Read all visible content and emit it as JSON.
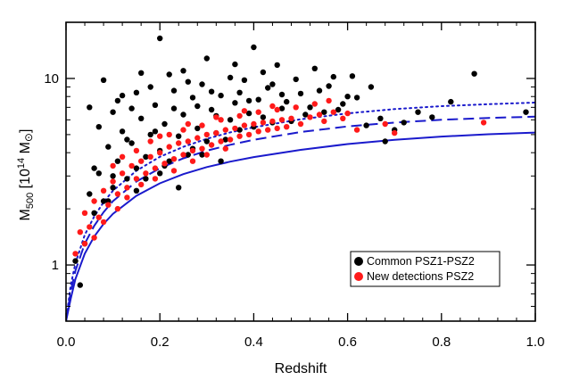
{
  "chart_data": {
    "type": "scatter",
    "title": "",
    "xlabel": "Redshift",
    "ylabel": "M500 [10^14 M⊙]",
    "ylabel_parts": {
      "main": "M",
      "sub": "500",
      "open": " [10",
      "sup": "14",
      "unit": " M",
      "unit_sub": "⊙",
      "close": "]"
    },
    "xlim": [
      0.0,
      1.0
    ],
    "ylim": [
      0.5,
      20
    ],
    "yscale": "log",
    "xticks": [
      0.0,
      0.2,
      0.4,
      0.6,
      0.8,
      1.0
    ],
    "xtick_labels": [
      "0.0",
      "0.2",
      "0.4",
      "0.6",
      "0.8",
      "1.0"
    ],
    "yticks": [
      1,
      10
    ],
    "ytick_labels": [
      "1",
      "10"
    ],
    "grid": false,
    "legend_position": "lower-right",
    "series": [
      {
        "name": "Common PSZ1-PSZ2",
        "color": "#000000",
        "marker": "circle",
        "points": [
          [
            0.03,
            0.78
          ],
          [
            0.04,
            1.3
          ],
          [
            0.05,
            2.4
          ],
          [
            0.06,
            1.9
          ],
          [
            0.07,
            3.1
          ],
          [
            0.08,
            2.2
          ],
          [
            0.09,
            4.3
          ],
          [
            0.1,
            2.6
          ],
          [
            0.11,
            3.6
          ],
          [
            0.12,
            5.2
          ],
          [
            0.13,
            2.9
          ],
          [
            0.14,
            4.5
          ],
          [
            0.15,
            3.3
          ],
          [
            0.16,
            6.1
          ],
          [
            0.17,
            3.8
          ],
          [
            0.18,
            5.0
          ],
          [
            0.19,
            7.2
          ],
          [
            0.2,
            4.1
          ],
          [
            0.21,
            5.7
          ],
          [
            0.22,
            3.6
          ],
          [
            0.23,
            8.6
          ],
          [
            0.24,
            4.9
          ],
          [
            0.25,
            6.4
          ],
          [
            0.26,
            3.9
          ],
          [
            0.27,
            7.9
          ],
          [
            0.28,
            5.4
          ],
          [
            0.29,
            9.3
          ],
          [
            0.3,
            4.6
          ],
          [
            0.31,
            6.8
          ],
          [
            0.32,
            5.1
          ],
          [
            0.33,
            8.1
          ],
          [
            0.34,
            4.7
          ],
          [
            0.35,
            6.0
          ],
          [
            0.36,
            7.4
          ],
          [
            0.37,
            5.3
          ],
          [
            0.38,
            9.8
          ],
          [
            0.39,
            6.5
          ],
          [
            0.4,
            5.5
          ],
          [
            0.41,
            7.7
          ],
          [
            0.42,
            6.2
          ],
          [
            0.43,
            8.9
          ],
          [
            0.44,
            5.8
          ],
          [
            0.45,
            11.8
          ],
          [
            0.46,
            6.9
          ],
          [
            0.47,
            7.5
          ],
          [
            0.48,
            5.9
          ],
          [
            0.5,
            8.3
          ],
          [
            0.52,
            7.0
          ],
          [
            0.54,
            8.6
          ],
          [
            0.55,
            6.6
          ],
          [
            0.57,
            10.2
          ],
          [
            0.59,
            7.3
          ],
          [
            0.6,
            8.0
          ],
          [
            0.62,
            7.9
          ],
          [
            0.65,
            9.0
          ],
          [
            0.68,
            4.6
          ],
          [
            0.7,
            5.3
          ],
          [
            0.75,
            6.6
          ],
          [
            0.82,
            7.5
          ],
          [
            0.87,
            10.6
          ],
          [
            0.98,
            6.6
          ],
          [
            0.2,
            16.4
          ],
          [
            0.08,
            9.8
          ],
          [
            0.4,
            14.7
          ],
          [
            0.36,
            11.9
          ],
          [
            0.3,
            12.8
          ],
          [
            0.16,
            10.7
          ],
          [
            0.25,
            11.0
          ],
          [
            0.12,
            8.1
          ],
          [
            0.05,
            7.0
          ],
          [
            0.1,
            6.6
          ],
          [
            0.02,
            1.05
          ],
          [
            0.06,
            3.3
          ],
          [
            0.09,
            2.2
          ],
          [
            0.13,
            4.7
          ],
          [
            0.17,
            2.9
          ],
          [
            0.21,
            3.4
          ],
          [
            0.24,
            2.6
          ],
          [
            0.27,
            4.2
          ],
          [
            0.33,
            3.6
          ],
          [
            0.14,
            6.9
          ],
          [
            0.18,
            9.0
          ],
          [
            0.22,
            10.5
          ],
          [
            0.26,
            9.6
          ],
          [
            0.31,
            8.5
          ],
          [
            0.35,
            10.1
          ],
          [
            0.39,
            7.6
          ],
          [
            0.44,
            9.3
          ],
          [
            0.49,
            9.9
          ],
          [
            0.53,
            11.3
          ],
          [
            0.56,
            9.1
          ],
          [
            0.61,
            10.3
          ],
          [
            0.67,
            6.1
          ],
          [
            0.72,
            5.8
          ],
          [
            0.78,
            6.2
          ],
          [
            0.07,
            5.5
          ],
          [
            0.11,
            7.6
          ],
          [
            0.15,
            8.4
          ],
          [
            0.19,
            5.2
          ],
          [
            0.23,
            6.9
          ],
          [
            0.28,
            7.1
          ],
          [
            0.32,
            6.3
          ],
          [
            0.37,
            8.4
          ],
          [
            0.42,
            10.8
          ],
          [
            0.46,
            8.2
          ],
          [
            0.51,
            6.4
          ],
          [
            0.58,
            6.8
          ],
          [
            0.64,
            5.6
          ],
          [
            0.1,
            3.0
          ],
          [
            0.15,
            2.5
          ],
          [
            0.2,
            3.1
          ],
          [
            0.29,
            3.9
          ]
        ]
      },
      {
        "name": "New detections PSZ2",
        "color": "#ff1a1a",
        "marker": "circle",
        "points": [
          [
            0.02,
            1.15
          ],
          [
            0.03,
            1.5
          ],
          [
            0.04,
            1.9
          ],
          [
            0.05,
            1.6
          ],
          [
            0.06,
            2.2
          ],
          [
            0.07,
            1.8
          ],
          [
            0.08,
            2.5
          ],
          [
            0.09,
            2.1
          ],
          [
            0.1,
            2.8
          ],
          [
            0.11,
            2.4
          ],
          [
            0.12,
            3.1
          ],
          [
            0.13,
            2.6
          ],
          [
            0.14,
            3.4
          ],
          [
            0.15,
            2.9
          ],
          [
            0.16,
            3.6
          ],
          [
            0.17,
            3.1
          ],
          [
            0.18,
            3.8
          ],
          [
            0.19,
            3.3
          ],
          [
            0.2,
            4.0
          ],
          [
            0.21,
            3.5
          ],
          [
            0.22,
            4.3
          ],
          [
            0.23,
            3.7
          ],
          [
            0.24,
            4.5
          ],
          [
            0.25,
            3.9
          ],
          [
            0.26,
            4.6
          ],
          [
            0.27,
            4.1
          ],
          [
            0.28,
            4.8
          ],
          [
            0.29,
            4.2
          ],
          [
            0.3,
            5.0
          ],
          [
            0.31,
            4.4
          ],
          [
            0.32,
            5.1
          ],
          [
            0.33,
            4.6
          ],
          [
            0.34,
            5.3
          ],
          [
            0.35,
            4.7
          ],
          [
            0.36,
            5.4
          ],
          [
            0.37,
            4.9
          ],
          [
            0.38,
            5.6
          ],
          [
            0.39,
            5.0
          ],
          [
            0.4,
            5.7
          ],
          [
            0.41,
            5.2
          ],
          [
            0.42,
            5.8
          ],
          [
            0.43,
            5.3
          ],
          [
            0.44,
            5.9
          ],
          [
            0.45,
            5.4
          ],
          [
            0.46,
            6.0
          ],
          [
            0.47,
            5.5
          ],
          [
            0.48,
            6.1
          ],
          [
            0.5,
            5.7
          ],
          [
            0.52,
            6.2
          ],
          [
            0.54,
            6.4
          ],
          [
            0.55,
            5.9
          ],
          [
            0.57,
            6.6
          ],
          [
            0.59,
            6.1
          ],
          [
            0.6,
            6.5
          ],
          [
            0.62,
            5.3
          ],
          [
            0.68,
            5.7
          ],
          [
            0.7,
            5.1
          ],
          [
            0.89,
            5.8
          ],
          [
            0.06,
            1.4
          ],
          [
            0.08,
            1.7
          ],
          [
            0.11,
            2.0
          ],
          [
            0.13,
            2.3
          ],
          [
            0.16,
            2.7
          ],
          [
            0.19,
            2.9
          ],
          [
            0.23,
            3.2
          ],
          [
            0.27,
            3.6
          ],
          [
            0.3,
            3.9
          ],
          [
            0.34,
            4.2
          ],
          [
            0.15,
            4.1
          ],
          [
            0.18,
            4.6
          ],
          [
            0.22,
            5.0
          ],
          [
            0.25,
            5.3
          ],
          [
            0.29,
            5.6
          ],
          [
            0.33,
            6.0
          ],
          [
            0.37,
            6.3
          ],
          [
            0.41,
            6.6
          ],
          [
            0.45,
            6.8
          ],
          [
            0.49,
            7.0
          ],
          [
            0.53,
            7.3
          ],
          [
            0.56,
            7.6
          ],
          [
            0.1,
            3.4
          ],
          [
            0.12,
            3.8
          ],
          [
            0.2,
            4.9
          ],
          [
            0.26,
            5.7
          ],
          [
            0.32,
            6.2
          ],
          [
            0.38,
            6.7
          ],
          [
            0.44,
            7.1
          ],
          [
            0.04,
            1.3
          ]
        ]
      }
    ],
    "curves": [
      {
        "style": "solid",
        "color": "#1a1acc",
        "x": [
          0.0,
          0.01,
          0.02,
          0.04,
          0.06,
          0.08,
          0.1,
          0.15,
          0.2,
          0.25,
          0.3,
          0.35,
          0.4,
          0.5,
          0.6,
          0.7,
          0.8,
          0.9,
          1.0
        ],
        "y": [
          0.5,
          0.66,
          0.84,
          1.15,
          1.42,
          1.66,
          1.88,
          2.35,
          2.74,
          3.07,
          3.35,
          3.58,
          3.79,
          4.14,
          4.45,
          4.69,
          4.88,
          5.02,
          5.13
        ]
      },
      {
        "style": "dashed",
        "color": "#1a1acc",
        "x": [
          0.0,
          0.01,
          0.02,
          0.04,
          0.06,
          0.08,
          0.1,
          0.15,
          0.2,
          0.25,
          0.3,
          0.35,
          0.4,
          0.5,
          0.6,
          0.7,
          0.8,
          0.9,
          1.0
        ],
        "y": [
          0.5,
          0.72,
          0.93,
          1.3,
          1.62,
          1.92,
          2.2,
          2.8,
          3.3,
          3.73,
          4.1,
          4.41,
          4.69,
          5.16,
          5.53,
          5.8,
          6.0,
          6.14,
          6.24
        ]
      },
      {
        "style": "dotted",
        "color": "#1a1acc",
        "x": [
          0.0,
          0.01,
          0.02,
          0.04,
          0.06,
          0.08,
          0.1,
          0.15,
          0.2,
          0.25,
          0.3,
          0.35,
          0.4,
          0.5,
          0.6,
          0.7,
          0.8,
          0.9,
          1.0
        ],
        "y": [
          0.5,
          0.78,
          1.02,
          1.45,
          1.82,
          2.17,
          2.5,
          3.2,
          3.8,
          4.3,
          4.75,
          5.14,
          5.47,
          6.04,
          6.5,
          6.85,
          7.1,
          7.28,
          7.42
        ]
      }
    ]
  }
}
